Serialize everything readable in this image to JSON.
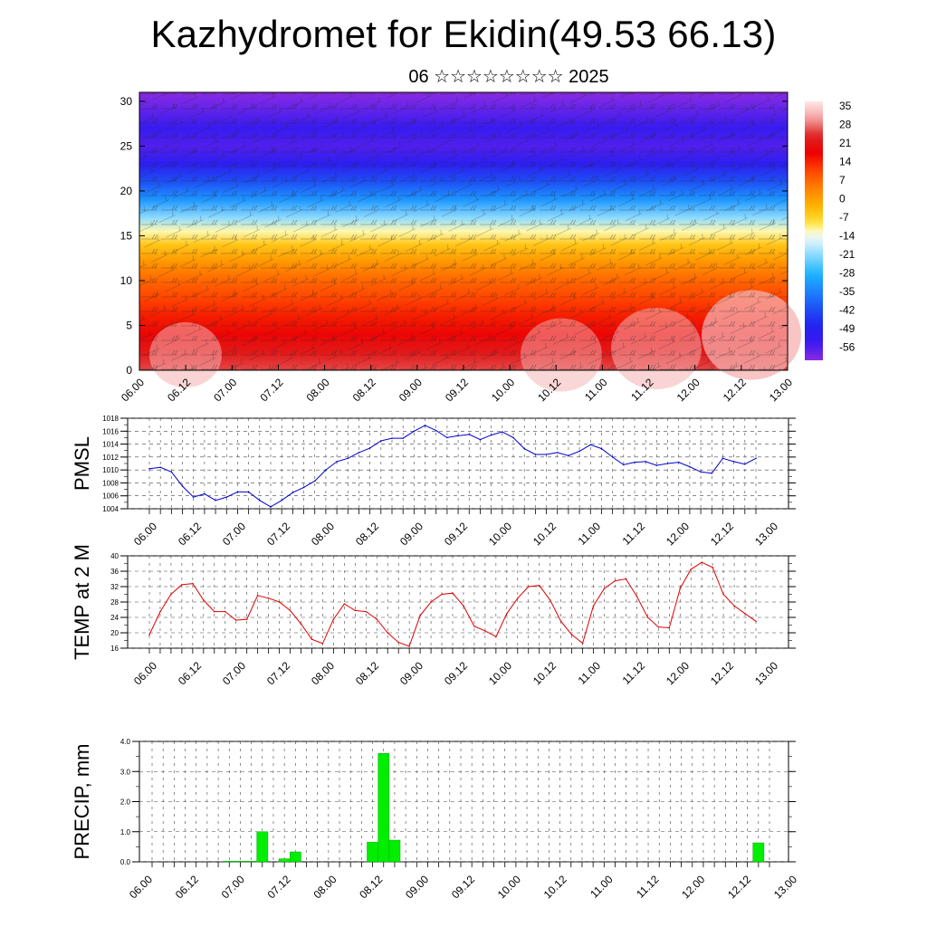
{
  "header": {
    "title": "Kazhydromet for Ekidin(49.53 66.13)",
    "subtitle": "06 ☆☆☆☆☆☆☆☆ 2025"
  },
  "colors": {
    "pressure_line": "#0000cc",
    "temperature_line": "#e00000",
    "precip_bar": "#00ee00",
    "precip_bar_edge": "#00aa00"
  },
  "chart_data": [
    {
      "type": "heatmap",
      "name": "upper-air cross section",
      "title": "",
      "ylabel": "",
      "ylim": [
        0,
        31
      ],
      "y_ticks": [
        "0",
        "5",
        "10",
        "15",
        "20",
        "25",
        "30"
      ],
      "x_ticks": [
        "06.00",
        "06.12",
        "07.00",
        "07.12",
        "08.00",
        "08.12",
        "09.00",
        "09.12",
        "10.00",
        "10.12",
        "11.00",
        "11.12",
        "12.00",
        "12.12",
        "13.00"
      ],
      "colorbar": {
        "labels": [
          "35",
          "28",
          "21",
          "14",
          "7",
          "0",
          "-7",
          "-14",
          "-21",
          "-28",
          "-35",
          "-42",
          "-49",
          "-56"
        ],
        "range": [
          -63,
          42
        ]
      },
      "temperature_profile": {
        "height": [
          0,
          2,
          4,
          6,
          8,
          10,
          12,
          14,
          15.5,
          17,
          19,
          21,
          23,
          25,
          27,
          31
        ],
        "value": [
          30,
          26,
          22,
          18,
          14,
          10,
          4,
          -3,
          -10,
          -20,
          -32,
          -42,
          -52,
          -58,
          -55,
          -63
        ]
      },
      "overlay": "wind barbs",
      "grid": false
    },
    {
      "type": "line",
      "ylabel": "PMSL",
      "ylim": [
        1004,
        1018
      ],
      "y_ticks": [
        "1004",
        "1006",
        "1008",
        "1010",
        "1012",
        "1014",
        "1016",
        "1018"
      ],
      "x_ticks": [
        "06.00",
        "06.12",
        "07.00",
        "07.12",
        "08.00",
        "08.12",
        "09.00",
        "09.12",
        "10.00",
        "10.12",
        "11.00",
        "11.12",
        "12.00",
        "12.12",
        "13.00"
      ],
      "grid": true,
      "series": [
        {
          "values": [
            1010.2,
            1010.4,
            1009.7,
            1007.5,
            1005.8,
            1006.3,
            1005.3,
            1005.8,
            1006.6,
            1006.6,
            1005.3,
            1004.3,
            1005.3,
            1006.5,
            1007.3,
            1008.3,
            1010.0,
            1011.3,
            1011.8,
            1012.7,
            1013.4,
            1014.5,
            1014.9,
            1014.9,
            1016.0,
            1016.9,
            1016.1,
            1015.0,
            1015.3,
            1015.5,
            1014.7,
            1015.4,
            1015.9,
            1015.0,
            1013.3,
            1012.4,
            1012.4,
            1012.7,
            1012.2,
            1012.9,
            1013.9,
            1013.3,
            1012.0,
            1010.8,
            1011.2,
            1011.3,
            1010.7,
            1011.0,
            1011.2,
            1010.5,
            1009.7,
            1009.5,
            1011.8,
            1011.3,
            1010.9,
            1011.8
          ]
        }
      ]
    },
    {
      "type": "line",
      "ylabel": "TEMP at 2 M",
      "ylim": [
        16,
        40
      ],
      "y_ticks": [
        "16",
        "20",
        "24",
        "28",
        "32",
        "36",
        "40"
      ],
      "x_ticks": [
        "06.00",
        "06.12",
        "07.00",
        "07.12",
        "08.00",
        "08.12",
        "09.00",
        "09.12",
        "10.00",
        "10.12",
        "11.00",
        "11.12",
        "12.00",
        "12.12",
        "13.00"
      ],
      "grid": true,
      "series": [
        {
          "values": [
            19.5,
            25.5,
            30.0,
            32.5,
            32.8,
            28.5,
            25.5,
            25.5,
            23.3,
            23.5,
            29.7,
            29.0,
            28.0,
            25.8,
            22.3,
            18.3,
            17.2,
            23.5,
            27.5,
            25.8,
            25.5,
            23.5,
            20.0,
            17.5,
            16.5,
            24.5,
            28.0,
            30.0,
            30.3,
            27.0,
            21.7,
            20.5,
            19.0,
            25.0,
            29.0,
            32.0,
            32.3,
            28.5,
            23.0,
            19.5,
            17.3,
            27.0,
            31.5,
            33.5,
            34.0,
            29.5,
            24.0,
            21.5,
            21.3,
            31.5,
            36.5,
            38.3,
            37.0,
            30.0,
            27.0,
            25.0,
            23.0
          ]
        }
      ]
    },
    {
      "type": "bar",
      "ylabel": "PRECIP, mm",
      "ylim": [
        0,
        4
      ],
      "y_ticks": [
        "0.0",
        "1.0",
        "2.0",
        "3.0",
        "4.0"
      ],
      "x_ticks": [
        "06.00",
        "06.12",
        "07.00",
        "07.12",
        "08.00",
        "08.12",
        "09.00",
        "09.12",
        "10.00",
        "10.12",
        "11.00",
        "11.12",
        "12.00",
        "12.12",
        "13.00"
      ],
      "grid": true,
      "series": [
        {
          "values": [
            0,
            0,
            0,
            0,
            0,
            0,
            0,
            0.02,
            0.02,
            0.02,
            1.0,
            0,
            0.1,
            0.33,
            0,
            0,
            0,
            0,
            0,
            0,
            0.65,
            3.6,
            0.72,
            0,
            0,
            0,
            0,
            0,
            0,
            0,
            0,
            0,
            0,
            0,
            0,
            0,
            0,
            0,
            0,
            0,
            0,
            0,
            0,
            0,
            0,
            0,
            0,
            0,
            0,
            0,
            0,
            0,
            0,
            0,
            0,
            0.63,
            0
          ]
        }
      ]
    }
  ]
}
